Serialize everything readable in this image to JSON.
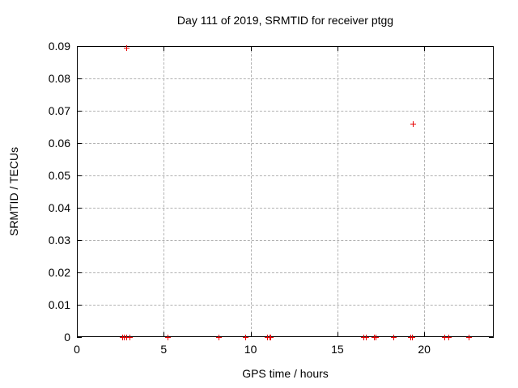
{
  "chart_data": {
    "type": "scatter",
    "title": "Day 111 of 2019, SRMTID for receiver ptgg",
    "xlabel": "GPS time / hours",
    "ylabel": "SRMTID / TECUs",
    "xlim": [
      0,
      24
    ],
    "ylim": [
      0,
      0.09
    ],
    "xticks": [
      0,
      5,
      10,
      15,
      20
    ],
    "yticks": [
      0,
      0.01,
      0.02,
      0.03,
      0.04,
      0.05,
      0.06,
      0.07,
      0.08,
      0.09
    ],
    "grid": "dashed gray, at major ticks",
    "legend_position": "none",
    "marker": "plus",
    "marker_color": "#e60000",
    "grid_color": "#b2b2b2",
    "border_color": "#000000",
    "series": [
      {
        "name": "SRMTID",
        "points": [
          [
            2.84,
            0.0895
          ],
          [
            19.35,
            0.066
          ],
          [
            2.6,
            0
          ],
          [
            2.72,
            0
          ],
          [
            2.83,
            0
          ],
          [
            3.01,
            0
          ],
          [
            5.21,
            0
          ],
          [
            8.16,
            0
          ],
          [
            9.68,
            0
          ],
          [
            10.97,
            0
          ],
          [
            11.08,
            0
          ],
          [
            11.16,
            0
          ],
          [
            16.5,
            0
          ],
          [
            16.62,
            0
          ],
          [
            17.08,
            0
          ],
          [
            17.2,
            0
          ],
          [
            18.22,
            0
          ],
          [
            19.2,
            0
          ],
          [
            19.3,
            0
          ],
          [
            21.17,
            0
          ],
          [
            21.4,
            0
          ],
          [
            22.55,
            0
          ]
        ]
      }
    ]
  }
}
